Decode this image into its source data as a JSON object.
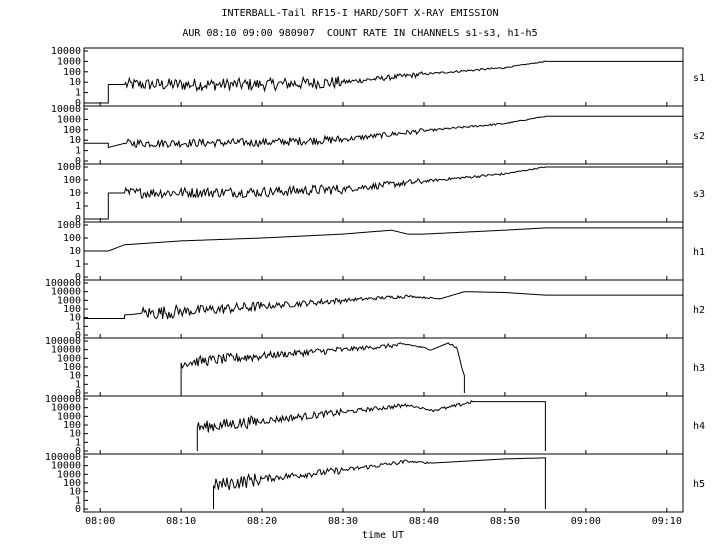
{
  "chart_data": {
    "type": "line",
    "title": "INTERBALL-Tail RF15-I HARD/SOFT X-RAY EMISSION",
    "subtitle": "AUR 08:10 09:00 980907  COUNT RATE IN CHANNELS s1-s3, h1-h5",
    "xlabel": "time UT",
    "x_ticks": [
      "08:00",
      "08:10",
      "08:20",
      "08:30",
      "08:40",
      "08:50",
      "09:00",
      "09:10"
    ],
    "xlim": [
      "07:58",
      "09:12"
    ],
    "y_scale": "log",
    "grid": false,
    "panels": [
      {
        "name": "s1",
        "y_ticks": [
          "10000",
          "1000",
          "100",
          "10",
          "1",
          "0"
        ],
        "x": [
          "07:58",
          "08:01",
          "08:01",
          "08:03",
          "08:20",
          "08:30",
          "08:40",
          "08:50",
          "08:55",
          "09:12"
        ],
        "y": [
          0,
          0,
          6,
          6,
          6,
          10,
          60,
          250,
          1000,
          1000
        ],
        "noise": [
          0,
          0,
          0,
          0.6,
          0.6,
          0.25,
          0.1,
          0.05,
          0,
          0
        ]
      },
      {
        "name": "s2",
        "y_ticks": [
          "10000",
          "1000",
          "100",
          "10",
          "1",
          "0"
        ],
        "x": [
          "07:58",
          "08:01",
          "08:01",
          "08:03",
          "08:20",
          "08:30",
          "08:40",
          "08:50",
          "08:55",
          "09:12"
        ],
        "y": [
          5,
          5,
          2,
          5,
          6,
          12,
          80,
          400,
          2000,
          2000
        ],
        "noise": [
          0,
          0,
          0,
          0.4,
          0.4,
          0.25,
          0.1,
          0.05,
          0,
          0
        ]
      },
      {
        "name": "s3",
        "y_ticks": [
          "1000",
          "100",
          "10",
          "1",
          "0"
        ],
        "x": [
          "07:58",
          "08:01",
          "08:01",
          "08:03",
          "08:20",
          "08:30",
          "08:40",
          "08:50",
          "08:55",
          "09:12"
        ],
        "y": [
          0,
          0,
          10,
          10,
          12,
          20,
          80,
          300,
          1000,
          1000
        ],
        "noise": [
          0,
          0,
          0,
          0.4,
          0.4,
          0.25,
          0.1,
          0.05,
          0,
          0
        ]
      },
      {
        "name": "h1",
        "y_ticks": [
          "1000",
          "100",
          "10",
          "1",
          "0"
        ],
        "x": [
          "07:58",
          "08:01",
          "08:03",
          "08:10",
          "08:20",
          "08:30",
          "08:36",
          "08:38",
          "08:40",
          "08:50",
          "08:55",
          "09:12"
        ],
        "y": [
          10,
          10,
          30,
          60,
          100,
          200,
          400,
          200,
          200,
          400,
          600,
          600
        ],
        "noise": [
          0,
          0,
          0,
          0,
          0,
          0,
          0,
          0,
          0,
          0,
          0,
          0
        ]
      },
      {
        "name": "h2",
        "y_ticks": [
          "100000",
          "10000",
          "1000",
          "100",
          "10",
          "1",
          "0"
        ],
        "x": [
          "07:58",
          "08:03",
          "08:03",
          "08:05",
          "08:10",
          "08:20",
          "08:30",
          "08:38",
          "08:42",
          "08:45",
          "08:50",
          "08:55",
          "09:12"
        ],
        "y": [
          8,
          8,
          20,
          30,
          50,
          200,
          1000,
          3000,
          1500,
          10000,
          8000,
          4000,
          4000
        ],
        "noise": [
          0,
          0,
          0,
          0.8,
          0.6,
          0.35,
          0.2,
          0.1,
          0,
          0,
          0,
          0,
          0
        ]
      },
      {
        "name": "h3",
        "y_ticks": [
          "100000",
          "10000",
          "1000",
          "100",
          "10",
          "1",
          "0"
        ],
        "x": [
          "08:10",
          "08:10",
          "08:20",
          "08:30",
          "08:38",
          "08:41",
          "08:43",
          "08:44",
          "08:45",
          "08:45"
        ],
        "y": [
          0,
          300,
          2000,
          10000,
          40000,
          10000,
          60000,
          20000,
          10,
          0
        ],
        "noise": [
          0,
          0.6,
          0.4,
          0.25,
          0.1,
          0,
          0.2,
          0.3,
          0,
          0
        ]
      },
      {
        "name": "h4",
        "y_ticks": [
          "100000",
          "10000",
          "1000",
          "100",
          "10",
          "1",
          "0"
        ],
        "x": [
          "08:12",
          "08:12",
          "08:20",
          "08:30",
          "08:38",
          "08:41",
          "08:43",
          "08:46",
          "08:55",
          "08:55"
        ],
        "y": [
          0,
          50,
          300,
          3000,
          20000,
          5000,
          10000,
          50000,
          50000,
          0
        ],
        "noise": [
          0,
          0.7,
          0.4,
          0.25,
          0.1,
          0.2,
          0.2,
          0,
          0,
          0
        ]
      },
      {
        "name": "h5",
        "y_ticks": [
          "100000",
          "10000",
          "1000",
          "100",
          "10",
          "1",
          "0"
        ],
        "x": [
          "08:14",
          "08:14",
          "08:20",
          "08:30",
          "08:38",
          "08:41",
          "08:50",
          "08:55",
          "08:55"
        ],
        "y": [
          0,
          50,
          300,
          3000,
          30000,
          20000,
          60000,
          80000,
          0
        ],
        "noise": [
          0,
          0.8,
          0.4,
          0.25,
          0.1,
          0,
          0,
          0,
          0
        ]
      }
    ]
  }
}
